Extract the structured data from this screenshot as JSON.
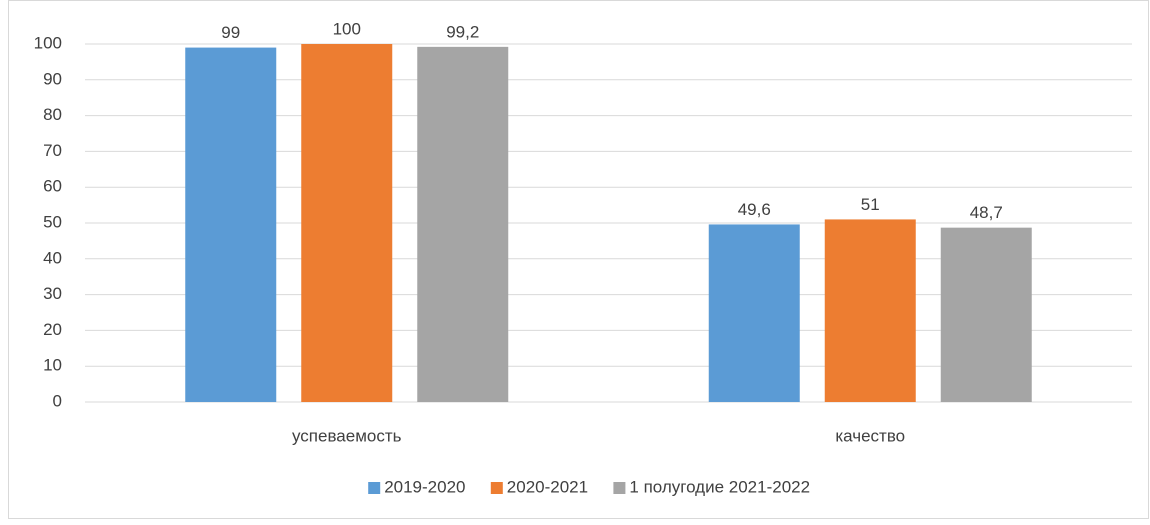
{
  "chart_data": {
    "type": "bar",
    "categories": [
      "успеваемость",
      "качество"
    ],
    "series": [
      {
        "name": "2019-2020",
        "color": "#5b9bd5",
        "values": [
          99,
          49.6
        ],
        "value_labels": [
          "99",
          "49,6"
        ]
      },
      {
        "name": "2020-2021",
        "color": "#ed7d31",
        "values": [
          100,
          51
        ],
        "value_labels": [
          "100",
          "51"
        ]
      },
      {
        "name": "1 полугодие 2021-2022",
        "color": "#a5a5a5",
        "values": [
          99.2,
          48.7
        ],
        "value_labels": [
          "99,2",
          "48,7"
        ]
      }
    ],
    "ylim": [
      0,
      100
    ],
    "yticks": [
      0,
      10,
      20,
      30,
      40,
      50,
      60,
      70,
      80,
      90,
      100
    ],
    "grid": true,
    "legend": "bottom"
  }
}
